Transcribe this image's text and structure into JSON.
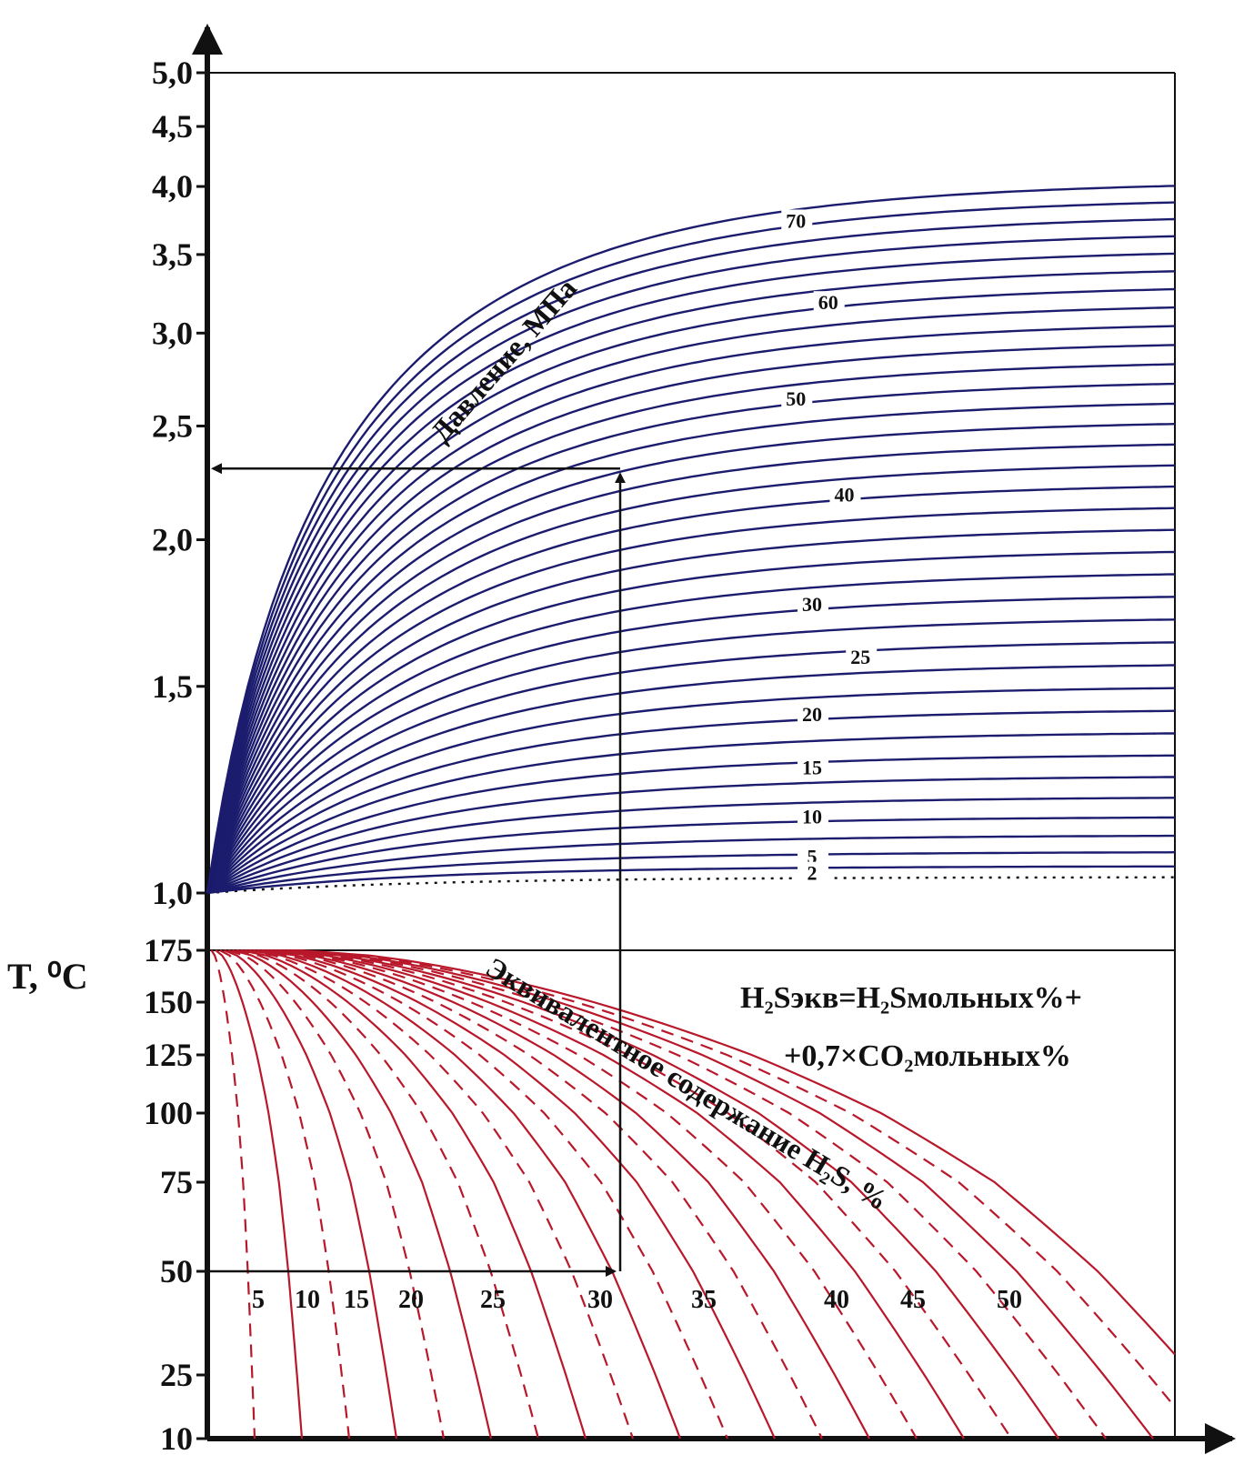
{
  "chart_data": [
    {
      "type": "line",
      "panel": "upper",
      "y_ticks": [
        "5,0",
        "4,5",
        "4,0",
        "3,5",
        "3,0",
        "2,5",
        "2,0",
        "1,5",
        "1,0"
      ],
      "y_tick_values": [
        5.0,
        4.5,
        4.0,
        3.5,
        3.0,
        2.5,
        2.0,
        1.5,
        1.0
      ],
      "ylim": [
        1.0,
        5.0
      ],
      "yscale": "log",
      "xlim": [
        0,
        60
      ],
      "curve_label_text": "Давление, МПа",
      "series_labels": [
        "70",
        "60",
        "50",
        "40",
        "30",
        "25",
        "20",
        "15",
        "10",
        "5",
        "2"
      ],
      "label_pressures": [
        70,
        60,
        50,
        40,
        30,
        25,
        20,
        15,
        10,
        5,
        2
      ],
      "series_count": 36,
      "series_color": "#1c1c6e",
      "dotted_series": "2",
      "example_read_value": 2.3
    },
    {
      "type": "line",
      "panel": "lower",
      "y_axis_title": "T, ⁰C",
      "y_ticks": [
        "175",
        "150",
        "125",
        "100",
        "75",
        "50",
        "25",
        "10"
      ],
      "y_tick_values": [
        175,
        150,
        125,
        100,
        75,
        50,
        25,
        10
      ],
      "ylim": [
        10,
        175
      ],
      "series_labels": [
        "5",
        "10",
        "15",
        "20",
        "25",
        "30",
        "35",
        "40",
        "45",
        "50"
      ],
      "series_values": [
        5,
        10,
        15,
        20,
        25,
        30,
        35,
        40,
        45,
        50
      ],
      "series_color": "#b8182a",
      "curve_label_text": "Эквивалентное содержание H₂S, %",
      "formula_line1": "H₂Sэкв=H₂Sмольных%+",
      "formula_line2": "+0,7×CO₂мольных%",
      "example_temperature": 50,
      "example_h2s": 30
    }
  ],
  "colors": {
    "pressure_lines": "#1c1c6e",
    "h2s_lines": "#b8182a",
    "axes": "#111111"
  }
}
